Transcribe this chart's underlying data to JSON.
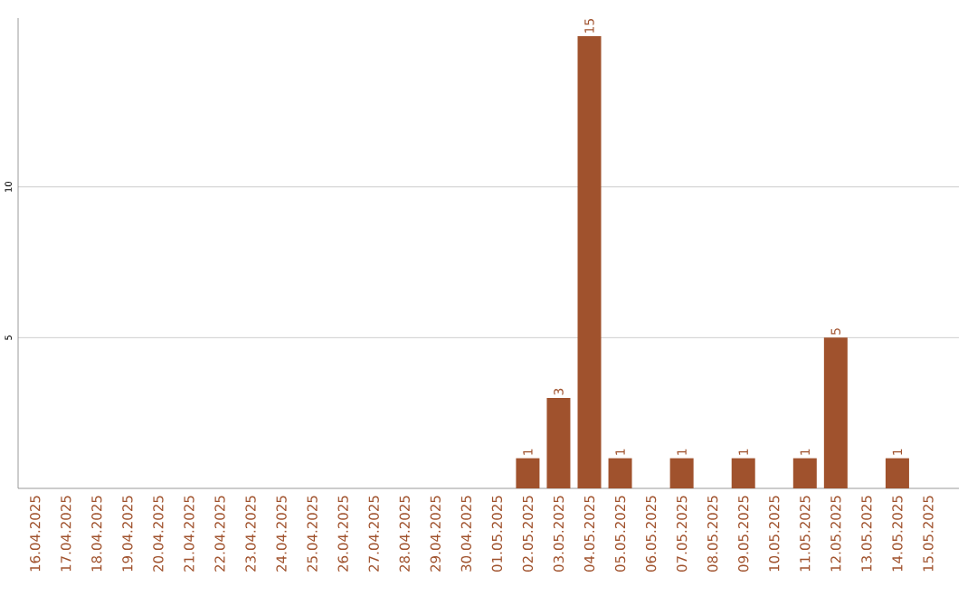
{
  "chart_data": {
    "type": "bar",
    "categories": [
      "16.04.2025",
      "17.04.2025",
      "18.04.2025",
      "19.04.2025",
      "20.04.2025",
      "21.04.2025",
      "22.04.2025",
      "23.04.2025",
      "24.04.2025",
      "25.04.2025",
      "26.04.2025",
      "27.04.2025",
      "28.04.2025",
      "29.04.2025",
      "30.04.2025",
      "01.05.2025",
      "02.05.2025",
      "03.05.2025",
      "04.05.2025",
      "05.05.2025",
      "06.05.2025",
      "07.05.2025",
      "08.05.2025",
      "09.05.2025",
      "10.05.2025",
      "11.05.2025",
      "12.05.2025",
      "13.05.2025",
      "14.05.2025",
      "15.05.2025"
    ],
    "values": [
      0,
      0,
      0,
      0,
      0,
      0,
      0,
      0,
      0,
      0,
      0,
      0,
      0,
      0,
      0,
      0,
      1,
      3,
      15,
      1,
      0,
      1,
      0,
      1,
      0,
      1,
      5,
      0,
      1,
      0
    ],
    "value_labels": [
      null,
      null,
      null,
      null,
      null,
      null,
      null,
      null,
      null,
      null,
      null,
      null,
      null,
      null,
      null,
      null,
      "1",
      "3",
      "15",
      "1",
      null,
      "1",
      null,
      "1",
      null,
      "1",
      "5",
      null,
      "1",
      null
    ],
    "color": "#a0522d",
    "ylim": [
      0,
      15.6
    ],
    "yticks": [
      5,
      10
    ],
    "grid": "y"
  }
}
